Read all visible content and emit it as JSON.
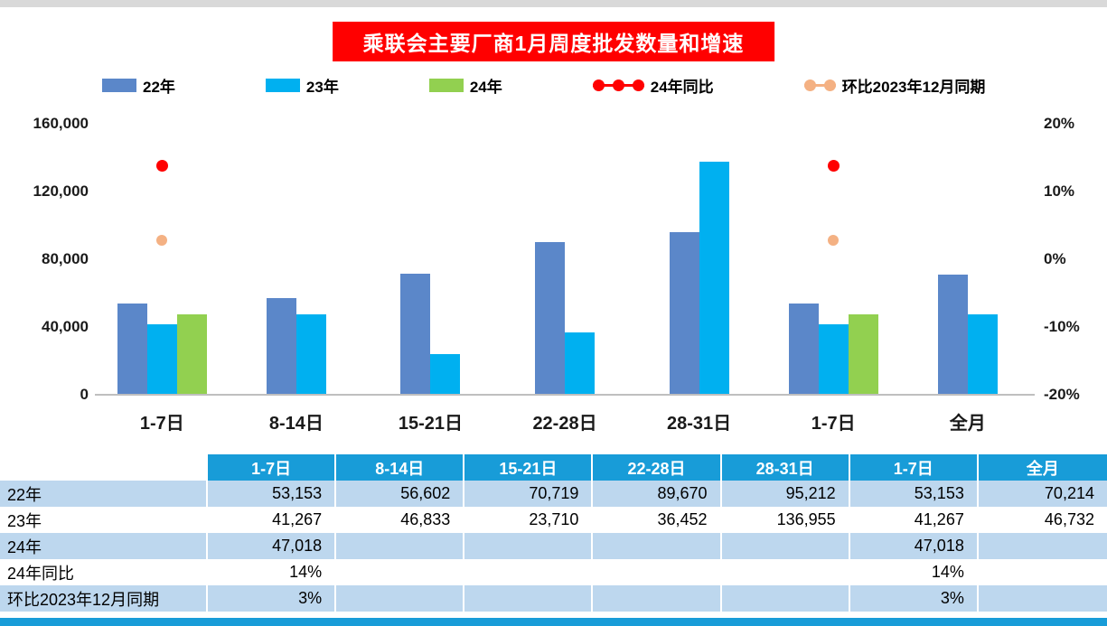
{
  "title": "乘联会主要厂商1月周度批发数量和增速",
  "colors": {
    "title_bg": "#FF0000",
    "bar22": "#5B87C9",
    "bar23": "#00B0F0",
    "bar24": "#92D050",
    "yoy_dot": "#FF0000",
    "mom_dot": "#F4B183",
    "table_header_bg": "#189CD8",
    "row_alt_bg": "#BDD7EE",
    "axis_line": "#bfbfbf"
  },
  "legend": [
    {
      "label": "22年",
      "type": "square",
      "color": "#5B87C9"
    },
    {
      "label": "23年",
      "type": "square",
      "color": "#00B0F0"
    },
    {
      "label": "24年",
      "type": "square",
      "color": "#92D050"
    },
    {
      "label": "24年同比",
      "type": "line-dots",
      "dots": 3,
      "color": "#FF0000"
    },
    {
      "label": "环比2023年12月同期",
      "type": "line-dots",
      "dots": 2,
      "color": "#F4B183"
    }
  ],
  "chart_data": {
    "type": "bar",
    "categories": [
      "1-7日",
      "8-14日",
      "15-21日",
      "22-28日",
      "28-31日",
      "1-7日",
      "全月"
    ],
    "series": [
      {
        "name": "22年",
        "color": "#5B87C9",
        "values": [
          53153,
          56602,
          70719,
          89670,
          95212,
          53153,
          70214
        ]
      },
      {
        "name": "23年",
        "color": "#00B0F0",
        "values": [
          41267,
          46833,
          23710,
          36452,
          136955,
          41267,
          46732
        ]
      },
      {
        "name": "24年",
        "color": "#92D050",
        "values": [
          47018,
          null,
          null,
          null,
          null,
          47018,
          null
        ]
      }
    ],
    "points": [
      {
        "name": "24年同比",
        "color": "#FF0000",
        "size": 13,
        "values_pct": [
          14,
          null,
          null,
          null,
          null,
          14,
          null
        ]
      },
      {
        "name": "环比2023年12月同期",
        "color": "#F4B183",
        "size": 12,
        "values_pct": [
          3,
          null,
          null,
          null,
          null,
          3,
          null
        ]
      }
    ],
    "left_axis": {
      "label": "",
      "min": 0,
      "max": 160000,
      "ticks": [
        "160,000",
        "120,000",
        "80,000",
        "40,000",
        "0"
      ]
    },
    "right_axis": {
      "label": "",
      "min": -20,
      "max": 20,
      "ticks": [
        "20%",
        "10%",
        "0%",
        "-10%",
        "-20%"
      ]
    },
    "grid": false,
    "legend_position": "top"
  },
  "table": {
    "header": [
      "",
      "1-7日",
      "8-14日",
      "15-21日",
      "22-28日",
      "28-31日",
      "1-7日",
      "全月"
    ],
    "rows": [
      {
        "label": "22年",
        "cells": [
          "53,153",
          "56,602",
          "70,719",
          "89,670",
          "95,212",
          "53,153",
          "70,214"
        ]
      },
      {
        "label": "23年",
        "cells": [
          "41,267",
          "46,833",
          "23,710",
          "36,452",
          "136,955",
          "41,267",
          "46,732"
        ]
      },
      {
        "label": "24年",
        "cells": [
          "47,018",
          "",
          "",
          "",
          "",
          "47,018",
          ""
        ]
      },
      {
        "label": "24年同比",
        "cells": [
          "14%",
          "",
          "",
          "",
          "",
          "14%",
          ""
        ]
      },
      {
        "label": "环比2023年12月同期",
        "cells": [
          "3%",
          "",
          "",
          "",
          "",
          "3%",
          ""
        ]
      }
    ]
  }
}
